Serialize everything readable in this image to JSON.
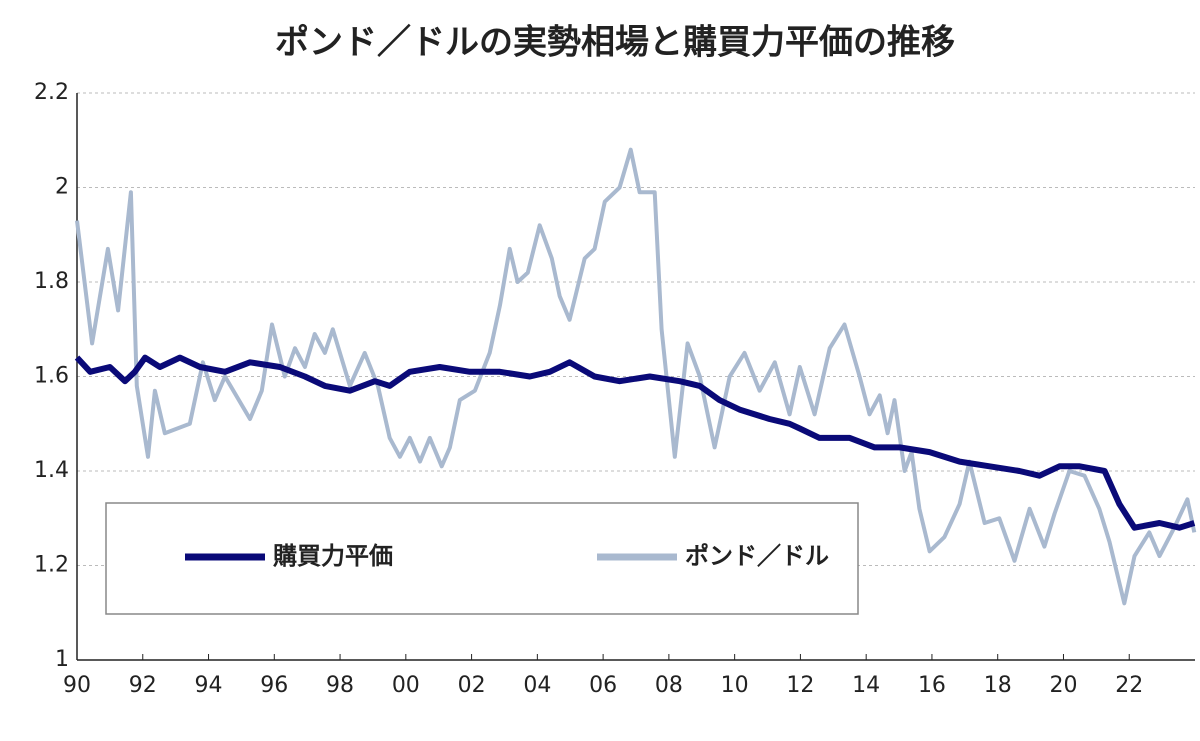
{
  "chart_data": {
    "type": "line",
    "title": "ポンド／ドルの実勢相場と購買力平価の推移",
    "xlim": [
      1990,
      2024
    ],
    "ylim": [
      1,
      2.2
    ],
    "xticks": [
      {
        "value": 1990,
        "label": "90"
      },
      {
        "value": 1992,
        "label": "92"
      },
      {
        "value": 1994,
        "label": "94"
      },
      {
        "value": 1996,
        "label": "96"
      },
      {
        "value": 1998,
        "label": "98"
      },
      {
        "value": 2000,
        "label": "00"
      },
      {
        "value": 2002,
        "label": "02"
      },
      {
        "value": 2004,
        "label": "04"
      },
      {
        "value": 2006,
        "label": "06"
      },
      {
        "value": 2008,
        "label": "08"
      },
      {
        "value": 2010,
        "label": "10"
      },
      {
        "value": 2012,
        "label": "12"
      },
      {
        "value": 2014,
        "label": "14"
      },
      {
        "value": 2016,
        "label": "16"
      },
      {
        "value": 2018,
        "label": "18"
      },
      {
        "value": 2020,
        "label": "20"
      },
      {
        "value": 2022,
        "label": "22"
      }
    ],
    "yticks": [
      1,
      1.2,
      1.4,
      1.6,
      1.8,
      2,
      2.2
    ],
    "grid": true,
    "legend": "lower left",
    "series": [
      {
        "name": "購買力平価",
        "color": "#0a0a78",
        "x": [
          1990.0,
          1990.4,
          1991.0,
          1991.46,
          1991.76,
          1992.07,
          1992.52,
          1993.13,
          1993.74,
          1994.5,
          1995.26,
          1996.17,
          1996.93,
          1997.54,
          1998.3,
          1999.06,
          1999.51,
          2000.12,
          2001.03,
          2001.95,
          2002.86,
          2003.77,
          2004.38,
          2004.98,
          2005.74,
          2006.5,
          2007.42,
          2008.33,
          2008.94,
          2009.54,
          2010.15,
          2011.06,
          2011.67,
          2011.98,
          2012.58,
          2013.5,
          2014.26,
          2015.02,
          2015.93,
          2016.84,
          2017.75,
          2018.66,
          2019.27,
          2019.88,
          2020.49,
          2021.25,
          2021.7,
          2022.16,
          2022.92,
          2023.53,
          2023.98
        ],
        "values": [
          1.64,
          1.61,
          1.62,
          1.59,
          1.61,
          1.64,
          1.62,
          1.64,
          1.62,
          1.61,
          1.63,
          1.62,
          1.6,
          1.58,
          1.57,
          1.59,
          1.58,
          1.61,
          1.62,
          1.61,
          1.61,
          1.6,
          1.61,
          1.63,
          1.6,
          1.59,
          1.6,
          1.59,
          1.58,
          1.55,
          1.53,
          1.51,
          1.5,
          1.49,
          1.47,
          1.47,
          1.45,
          1.45,
          1.44,
          1.42,
          1.41,
          1.4,
          1.39,
          1.41,
          1.41,
          1.4,
          1.33,
          1.28,
          1.29,
          1.28,
          1.29
        ]
      },
      {
        "name": "ポンド／ドル",
        "color": "#a9b9cf",
        "x": [
          1990.0,
          1990.46,
          1990.94,
          1991.25,
          1991.64,
          1991.82,
          1992.16,
          1992.37,
          1992.67,
          1993.43,
          1993.83,
          1994.19,
          1994.5,
          1995.26,
          1995.62,
          1995.93,
          1996.32,
          1996.63,
          1996.93,
          1997.23,
          1997.54,
          1997.78,
          1998.3,
          1998.75,
          1999.15,
          1999.51,
          1999.82,
          2000.12,
          2000.43,
          2000.73,
          2001.09,
          2001.34,
          2001.64,
          2002.1,
          2002.55,
          2002.86,
          2003.16,
          2003.4,
          2003.71,
          2004.07,
          2004.44,
          2004.68,
          2004.98,
          2005.44,
          2005.74,
          2006.05,
          2006.5,
          2006.84,
          2007.11,
          2007.57,
          2007.78,
          2008.18,
          2008.57,
          2008.94,
          2009.39,
          2009.85,
          2010.3,
          2010.76,
          2011.22,
          2011.67,
          2011.98,
          2012.43,
          2012.89,
          2013.34,
          2013.8,
          2014.1,
          2014.41,
          2014.65,
          2014.86,
          2015.17,
          2015.38,
          2015.62,
          2015.93,
          2016.38,
          2016.84,
          2017.14,
          2017.6,
          2018.05,
          2018.51,
          2018.97,
          2019.42,
          2019.73,
          2020.18,
          2020.64,
          2021.09,
          2021.4,
          2021.85,
          2022.16,
          2022.61,
          2022.92,
          2023.37,
          2023.77,
          2023.98
        ],
        "values": [
          1.93,
          1.67,
          1.87,
          1.74,
          1.99,
          1.58,
          1.43,
          1.57,
          1.48,
          1.5,
          1.63,
          1.55,
          1.6,
          1.51,
          1.57,
          1.71,
          1.6,
          1.66,
          1.62,
          1.69,
          1.65,
          1.7,
          1.58,
          1.65,
          1.58,
          1.47,
          1.43,
          1.47,
          1.42,
          1.47,
          1.41,
          1.45,
          1.55,
          1.57,
          1.65,
          1.75,
          1.87,
          1.8,
          1.82,
          1.92,
          1.85,
          1.77,
          1.72,
          1.85,
          1.87,
          1.97,
          2.0,
          2.08,
          1.99,
          1.99,
          1.7,
          1.43,
          1.67,
          1.6,
          1.45,
          1.6,
          1.65,
          1.57,
          1.63,
          1.52,
          1.62,
          1.52,
          1.66,
          1.71,
          1.6,
          1.52,
          1.56,
          1.48,
          1.55,
          1.4,
          1.44,
          1.32,
          1.23,
          1.26,
          1.33,
          1.42,
          1.29,
          1.3,
          1.21,
          1.32,
          1.24,
          1.31,
          1.4,
          1.39,
          1.32,
          1.25,
          1.12,
          1.22,
          1.27,
          1.22,
          1.28,
          1.34,
          1.27
        ]
      }
    ]
  }
}
